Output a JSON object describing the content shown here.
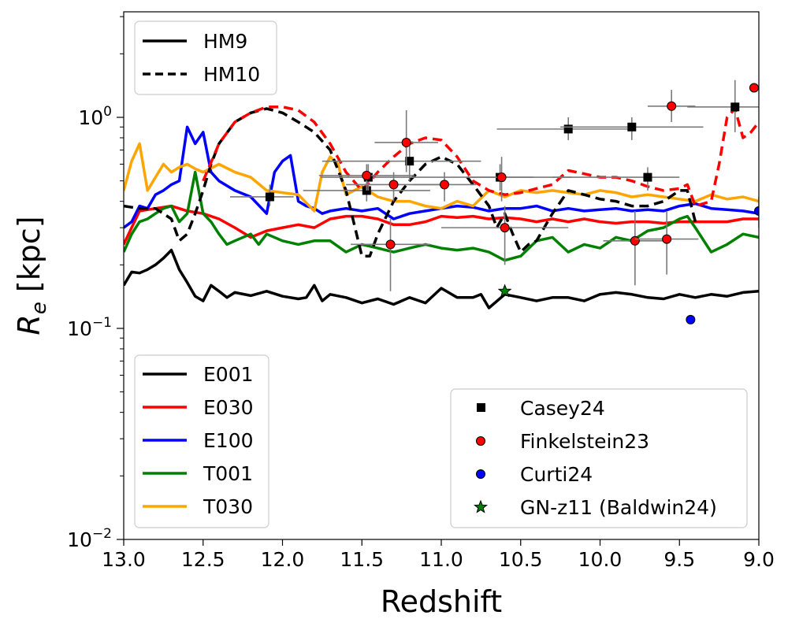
{
  "chart_data": {
    "type": "line",
    "xlabel": "Redshift",
    "ylabel": "R_e [kpc]",
    "ylabel_parts": {
      "symbol": "R",
      "subscript": "e",
      "unit": " [kpc]"
    },
    "xlim": [
      13.0,
      9.0
    ],
    "ylim_log10": [
      -2.0,
      0.5
    ],
    "y_scale": "log",
    "x_ticks": [
      13.0,
      12.5,
      12.0,
      11.5,
      11.0,
      10.5,
      10.0,
      9.5,
      9.0
    ],
    "x_tick_labels": [
      "13.0",
      "12.5",
      "12.0",
      "11.5",
      "11.0",
      "10.5",
      "10.0",
      "9.5",
      "9.0"
    ],
    "y_ticks": [
      {
        "value": 0.01,
        "base": "10",
        "exp": "−2"
      },
      {
        "value": 0.1,
        "base": "10",
        "exp": "−1"
      },
      {
        "value": 1.0,
        "base": "10",
        "exp": "0"
      }
    ],
    "style_legend": [
      {
        "name": "HM9",
        "dash": "solid"
      },
      {
        "name": "HM10",
        "dash": "dashed"
      }
    ],
    "model_legend": [
      {
        "name": "E001",
        "color": "#000000"
      },
      {
        "name": "E030",
        "color": "#ff0000"
      },
      {
        "name": "E100",
        "color": "#0000ff"
      },
      {
        "name": "T001",
        "color": "#008000"
      },
      {
        "name": "T030",
        "color": "#ffa500"
      }
    ],
    "series": [
      {
        "name": "E001 (HM9)",
        "color": "#000000",
        "dash": "solid",
        "x": [
          13.0,
          12.95,
          12.9,
          12.85,
          12.8,
          12.75,
          12.7,
          12.65,
          12.6,
          12.55,
          12.5,
          12.45,
          12.4,
          12.35,
          12.3,
          12.2,
          12.1,
          12.0,
          11.9,
          11.85,
          11.8,
          11.75,
          11.7,
          11.6,
          11.5,
          11.4,
          11.3,
          11.2,
          11.1,
          11.0,
          10.9,
          10.8,
          10.75,
          10.7,
          10.6,
          10.5,
          10.4,
          10.3,
          10.2,
          10.1,
          10.0,
          9.9,
          9.8,
          9.7,
          9.6,
          9.5,
          9.4,
          9.3,
          9.2,
          9.1,
          9.0
        ],
        "y": [
          0.16,
          0.185,
          0.183,
          0.19,
          0.2,
          0.215,
          0.235,
          0.19,
          0.165,
          0.142,
          0.135,
          0.16,
          0.15,
          0.14,
          0.148,
          0.143,
          0.15,
          0.142,
          0.138,
          0.14,
          0.16,
          0.135,
          0.145,
          0.14,
          0.132,
          0.138,
          0.13,
          0.14,
          0.132,
          0.155,
          0.14,
          0.14,
          0.145,
          0.125,
          0.145,
          0.14,
          0.135,
          0.14,
          0.14,
          0.135,
          0.145,
          0.148,
          0.145,
          0.14,
          0.138,
          0.145,
          0.14,
          0.145,
          0.142,
          0.148,
          0.15
        ]
      },
      {
        "name": "E030 (HM9)",
        "color": "#ff0000",
        "dash": "solid",
        "x": [
          13.0,
          12.9,
          12.8,
          12.7,
          12.6,
          12.5,
          12.4,
          12.3,
          12.2,
          12.1,
          12.0,
          11.9,
          11.8,
          11.7,
          11.6,
          11.5,
          11.4,
          11.3,
          11.2,
          11.1,
          11.0,
          10.9,
          10.8,
          10.7,
          10.6,
          10.5,
          10.4,
          10.3,
          10.2,
          10.1,
          10.0,
          9.9,
          9.8,
          9.7,
          9.6,
          9.5,
          9.4,
          9.3,
          9.2,
          9.1,
          9.0
        ],
        "y": [
          0.25,
          0.36,
          0.37,
          0.38,
          0.36,
          0.35,
          0.33,
          0.3,
          0.27,
          0.29,
          0.3,
          0.31,
          0.3,
          0.33,
          0.34,
          0.34,
          0.33,
          0.31,
          0.31,
          0.32,
          0.34,
          0.335,
          0.34,
          0.33,
          0.335,
          0.33,
          0.32,
          0.33,
          0.32,
          0.33,
          0.32,
          0.315,
          0.32,
          0.32,
          0.315,
          0.32,
          0.32,
          0.32,
          0.32,
          0.33,
          0.33
        ]
      },
      {
        "name": "E100 (HM9)",
        "color": "#0000ff",
        "dash": "solid",
        "x": [
          13.0,
          12.95,
          12.9,
          12.85,
          12.8,
          12.75,
          12.7,
          12.65,
          12.6,
          12.55,
          12.5,
          12.45,
          12.4,
          12.3,
          12.2,
          12.1,
          12.05,
          12.0,
          11.95,
          11.9,
          11.85,
          11.8,
          11.75,
          11.7,
          11.6,
          11.5,
          11.4,
          11.3,
          11.2,
          11.1,
          11.0,
          10.9,
          10.8,
          10.7,
          10.6,
          10.5,
          10.4,
          10.3,
          10.2,
          10.1,
          10.0,
          9.9,
          9.8,
          9.7,
          9.6,
          9.5,
          9.4,
          9.3,
          9.2,
          9.1,
          9.0
        ],
        "y": [
          0.3,
          0.32,
          0.38,
          0.37,
          0.43,
          0.45,
          0.48,
          0.5,
          0.9,
          0.75,
          0.85,
          0.55,
          0.5,
          0.45,
          0.42,
          0.35,
          0.55,
          0.62,
          0.66,
          0.4,
          0.38,
          0.37,
          0.35,
          0.36,
          0.37,
          0.36,
          0.37,
          0.33,
          0.35,
          0.36,
          0.37,
          0.38,
          0.375,
          0.36,
          0.37,
          0.37,
          0.38,
          0.36,
          0.37,
          0.36,
          0.365,
          0.37,
          0.36,
          0.365,
          0.36,
          0.38,
          0.39,
          0.37,
          0.365,
          0.36,
          0.35
        ]
      },
      {
        "name": "T001 (HM9)",
        "color": "#008000",
        "dash": "solid",
        "x": [
          13.0,
          12.95,
          12.9,
          12.85,
          12.8,
          12.75,
          12.7,
          12.65,
          12.6,
          12.55,
          12.5,
          12.45,
          12.4,
          12.35,
          12.3,
          12.2,
          12.15,
          12.1,
          12.0,
          11.9,
          11.8,
          11.7,
          11.6,
          11.5,
          11.4,
          11.3,
          11.2,
          11.1,
          11.0,
          10.9,
          10.8,
          10.7,
          10.6,
          10.5,
          10.4,
          10.3,
          10.2,
          10.1,
          10.0,
          9.9,
          9.8,
          9.7,
          9.6,
          9.5,
          9.45,
          9.4,
          9.3,
          9.2,
          9.1,
          9.0
        ],
        "y": [
          0.23,
          0.28,
          0.32,
          0.33,
          0.35,
          0.37,
          0.38,
          0.32,
          0.35,
          0.55,
          0.35,
          0.32,
          0.28,
          0.25,
          0.26,
          0.28,
          0.25,
          0.28,
          0.26,
          0.25,
          0.26,
          0.26,
          0.23,
          0.25,
          0.24,
          0.23,
          0.24,
          0.25,
          0.24,
          0.235,
          0.24,
          0.23,
          0.21,
          0.22,
          0.26,
          0.27,
          0.23,
          0.25,
          0.24,
          0.27,
          0.26,
          0.29,
          0.3,
          0.33,
          0.34,
          0.3,
          0.23,
          0.25,
          0.28,
          0.27
        ]
      },
      {
        "name": "T030 (HM9)",
        "color": "#ffa500",
        "dash": "solid",
        "x": [
          13.0,
          12.95,
          12.9,
          12.85,
          12.8,
          12.75,
          12.7,
          12.65,
          12.6,
          12.55,
          12.5,
          12.4,
          12.3,
          12.2,
          12.1,
          12.0,
          11.9,
          11.8,
          11.75,
          11.7,
          11.65,
          11.6,
          11.5,
          11.4,
          11.3,
          11.2,
          11.1,
          11.0,
          10.9,
          10.8,
          10.7,
          10.6,
          10.5,
          10.4,
          10.3,
          10.2,
          10.1,
          10.0,
          9.9,
          9.8,
          9.7,
          9.6,
          9.5,
          9.4,
          9.3,
          9.2,
          9.1,
          9.0
        ],
        "y": [
          0.45,
          0.62,
          0.75,
          0.45,
          0.52,
          0.6,
          0.55,
          0.58,
          0.6,
          0.57,
          0.55,
          0.6,
          0.55,
          0.52,
          0.45,
          0.44,
          0.43,
          0.36,
          0.55,
          0.65,
          0.6,
          0.43,
          0.47,
          0.42,
          0.4,
          0.4,
          0.38,
          0.37,
          0.4,
          0.38,
          0.45,
          0.42,
          0.45,
          0.44,
          0.45,
          0.44,
          0.43,
          0.45,
          0.44,
          0.42,
          0.43,
          0.42,
          0.41,
          0.4,
          0.43,
          0.41,
          0.42,
          0.4
        ]
      },
      {
        "name": "E001 (HM10)",
        "color": "#000000",
        "dash": "dashed",
        "x": [
          13.0,
          12.9,
          12.8,
          12.7,
          12.65,
          12.6,
          12.55,
          12.5,
          12.45,
          12.4,
          12.3,
          12.2,
          12.1,
          12.0,
          11.9,
          11.8,
          11.7,
          11.6,
          11.5,
          11.45,
          11.4,
          11.3,
          11.2,
          11.1,
          11.0,
          10.9,
          10.8,
          10.7,
          10.65,
          10.6,
          10.55,
          10.5,
          10.45,
          10.4,
          10.3,
          10.2,
          10.1,
          10.0,
          9.9,
          9.8,
          9.7,
          9.6,
          9.5,
          9.45,
          9.4
        ],
        "y": [
          0.38,
          0.37,
          0.37,
          0.33,
          0.26,
          0.28,
          0.35,
          0.45,
          0.6,
          0.75,
          0.95,
          1.05,
          1.1,
          1.05,
          0.95,
          0.85,
          0.7,
          0.45,
          0.22,
          0.22,
          0.28,
          0.4,
          0.5,
          0.6,
          0.65,
          0.6,
          0.48,
          0.38,
          0.3,
          0.35,
          0.28,
          0.23,
          0.25,
          0.26,
          0.35,
          0.45,
          0.43,
          0.41,
          0.4,
          0.38,
          0.38,
          0.4,
          0.45,
          0.45,
          0.32
        ]
      },
      {
        "name": "E030 (HM10)",
        "color": "#ff0000",
        "dash": "dashed",
        "x": [
          12.5,
          12.4,
          12.3,
          12.2,
          12.1,
          12.0,
          11.9,
          11.8,
          11.7,
          11.6,
          11.5,
          11.4,
          11.3,
          11.2,
          11.1,
          11.0,
          10.9,
          10.8,
          10.7,
          10.6,
          10.5,
          10.4,
          10.3,
          10.2,
          10.1,
          10.0,
          9.9,
          9.8,
          9.7,
          9.6,
          9.5,
          9.45,
          9.4,
          9.3,
          9.25,
          9.2,
          9.15,
          9.1,
          9.05,
          9.0
        ],
        "y": [
          0.5,
          0.75,
          0.95,
          1.05,
          1.12,
          1.12,
          1.08,
          0.95,
          0.75,
          0.55,
          0.45,
          0.55,
          0.65,
          0.75,
          0.8,
          0.78,
          0.65,
          0.5,
          0.45,
          0.43,
          0.44,
          0.46,
          0.48,
          0.56,
          0.54,
          0.52,
          0.52,
          0.5,
          0.47,
          0.45,
          0.46,
          0.48,
          0.38,
          0.4,
          0.6,
          1.0,
          1.1,
          0.8,
          0.85,
          0.95
        ]
      }
    ],
    "scatter_legend": [
      {
        "name": "Casey24",
        "marker": "square",
        "color": "#000000"
      },
      {
        "name": "Finkelstein23",
        "marker": "circle",
        "color": "#ff0000"
      },
      {
        "name": "Curti24",
        "marker": "circle",
        "color": "#0000ff"
      },
      {
        "name": "GN-z11 (Baldwin24)",
        "marker": "star",
        "color": "#008000"
      }
    ],
    "observations": [
      {
        "source": "Casey24",
        "marker": "square",
        "color": "#000000",
        "points": [
          {
            "x": 12.08,
            "y": 0.42,
            "xerr": [
              0.25,
              0.15
            ],
            "yerr": [
              0.38,
              0.48
            ]
          },
          {
            "x": 11.47,
            "y": 0.45,
            "xerr": [
              0.4,
              0.4
            ],
            "yerr": [
              0.4,
              0.5
            ]
          },
          {
            "x": 11.46,
            "y": 0.52,
            "xerr": [
              0.3,
              0.3
            ],
            "yerr": [
              0.45,
              0.6
            ]
          },
          {
            "x": 11.2,
            "y": 0.62,
            "xerr": [
              0.55,
              0.45
            ],
            "yerr": [
              0.5,
              0.75
            ]
          },
          {
            "x": 10.63,
            "y": 0.52,
            "xerr": [
              0.55,
              0.45
            ],
            "yerr": [
              0.45,
              0.6
            ]
          },
          {
            "x": 10.2,
            "y": 0.88,
            "xerr": [
              0.45,
              0.4
            ],
            "yerr": [
              0.78,
              1.0
            ]
          },
          {
            "x": 9.8,
            "y": 0.9,
            "xerr": [
              0.45,
              0.45
            ],
            "yerr": [
              0.78,
              1.0
            ]
          },
          {
            "x": 9.7,
            "y": 0.52,
            "xerr": [
              0.6,
              0.2
            ],
            "yerr": [
              0.45,
              0.58
            ]
          },
          {
            "x": 9.15,
            "y": 1.12,
            "xerr": [
              0.3,
              0.2
            ],
            "yerr": [
              0.85,
              1.5
            ]
          }
        ]
      },
      {
        "source": "Finkelstein23",
        "marker": "circle",
        "color": "#ff0000",
        "points": [
          {
            "x": 11.47,
            "y": 0.53,
            "xerr": [
              0.3,
              0.3
            ],
            "yerr": [
              0.45,
              0.6
            ]
          },
          {
            "x": 11.3,
            "y": 0.48,
            "xerr": [
              0.3,
              0.3
            ],
            "yerr": [
              0.4,
              0.55
            ]
          },
          {
            "x": 11.32,
            "y": 0.25,
            "xerr": [
              0.25,
              0.25
            ],
            "yerr": [
              0.15,
              0.33
            ]
          },
          {
            "x": 11.22,
            "y": 0.76,
            "xerr": [
              0.2,
              0.2
            ],
            "yerr": [
              0.55,
              1.08
            ]
          },
          {
            "x": 10.98,
            "y": 0.48,
            "xerr": [
              0.2,
              0.2
            ],
            "yerr": [
              0.4,
              0.55
            ]
          },
          {
            "x": 10.62,
            "y": 0.52,
            "xerr": [
              0.2,
              0.2
            ],
            "yerr": [
              0.4,
              0.65
            ]
          },
          {
            "x": 10.6,
            "y": 0.3,
            "xerr": [
              0.4,
              0.4
            ],
            "yerr": [
              0.2,
              0.38
            ]
          },
          {
            "x": 9.78,
            "y": 0.26,
            "xerr": [
              0.2,
              0.2
            ],
            "yerr": [
              0.16,
              0.36
            ]
          },
          {
            "x": 9.58,
            "y": 0.265,
            "xerr": [
              0.2,
              0.2
            ],
            "yerr": [
              0.18,
              0.36
            ]
          },
          {
            "x": 9.55,
            "y": 1.13,
            "xerr": [
              0.15,
              0.15
            ],
            "yerr": [
              0.95,
              1.35
            ]
          },
          {
            "x": 9.03,
            "y": 1.38,
            "xerr": [
              0.0,
              0.0
            ],
            "yerr": [
              1.38,
              1.38
            ]
          }
        ]
      },
      {
        "source": "Curti24",
        "marker": "circle",
        "color": "#0000ff",
        "points": [
          {
            "x": 9.43,
            "y": 0.11
          },
          {
            "x": 9.0,
            "y": 0.36,
            "xerr": [
              0.0,
              0.0
            ],
            "yerr": [
              0.3,
              0.42
            ]
          }
        ]
      },
      {
        "source": "GN-z11 (Baldwin24)",
        "marker": "star",
        "color": "#008000",
        "points": [
          {
            "x": 10.6,
            "y": 0.15
          }
        ]
      }
    ]
  }
}
